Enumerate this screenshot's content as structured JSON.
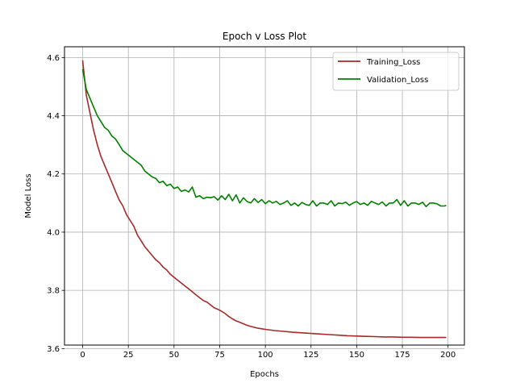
{
  "chart_data": {
    "type": "line",
    "title": "Epoch v Loss Plot",
    "xlabel": "Epochs",
    "ylabel": "Model Loss",
    "xlim": [
      -9.95,
      208.95
    ],
    "ylim": [
      3.612,
      4.637
    ],
    "xticks": [
      0,
      25,
      50,
      75,
      100,
      125,
      150,
      175,
      200
    ],
    "yticks": [
      3.6,
      3.8,
      4.0,
      4.2,
      4.4,
      4.6
    ],
    "grid": true,
    "legend_position": "top-right",
    "series": [
      {
        "name": "Training_Loss",
        "color": "#a52a2a",
        "x": [
          0,
          2,
          4,
          6,
          8,
          10,
          12,
          14,
          16,
          18,
          20,
          22,
          24,
          26,
          28,
          30,
          32,
          34,
          36,
          38,
          40,
          42,
          44,
          46,
          48,
          50,
          52,
          54,
          56,
          58,
          60,
          62,
          64,
          66,
          68,
          70,
          72,
          74,
          76,
          78,
          80,
          82,
          84,
          86,
          88,
          90,
          92,
          94,
          96,
          98,
          100,
          105,
          110,
          115,
          120,
          125,
          130,
          135,
          140,
          145,
          150,
          155,
          160,
          165,
          170,
          175,
          180,
          185,
          190,
          195,
          199
        ],
        "values": [
          4.59,
          4.47,
          4.41,
          4.35,
          4.3,
          4.26,
          4.23,
          4.2,
          4.17,
          4.14,
          4.11,
          4.09,
          4.06,
          4.04,
          4.02,
          3.99,
          3.97,
          3.95,
          3.935,
          3.92,
          3.905,
          3.895,
          3.88,
          3.87,
          3.855,
          3.845,
          3.835,
          3.825,
          3.815,
          3.805,
          3.795,
          3.785,
          3.775,
          3.765,
          3.76,
          3.75,
          3.74,
          3.735,
          3.728,
          3.72,
          3.71,
          3.702,
          3.695,
          3.69,
          3.685,
          3.68,
          3.676,
          3.673,
          3.67,
          3.668,
          3.666,
          3.662,
          3.659,
          3.656,
          3.654,
          3.652,
          3.65,
          3.648,
          3.646,
          3.644,
          3.643,
          3.642,
          3.641,
          3.64,
          3.64,
          3.639,
          3.639,
          3.638,
          3.638,
          3.638,
          3.638
        ]
      },
      {
        "name": "Validation_Loss",
        "color": "#008000",
        "x": [
          0,
          2,
          4,
          6,
          8,
          10,
          12,
          14,
          16,
          18,
          20,
          22,
          24,
          26,
          28,
          30,
          32,
          34,
          36,
          38,
          40,
          42,
          44,
          46,
          48,
          50,
          52,
          54,
          56,
          58,
          60,
          62,
          64,
          66,
          68,
          70,
          72,
          74,
          76,
          78,
          80,
          82,
          84,
          86,
          88,
          90,
          92,
          94,
          96,
          98,
          100,
          102,
          104,
          106,
          108,
          110,
          112,
          114,
          116,
          118,
          120,
          122,
          124,
          126,
          128,
          130,
          132,
          134,
          136,
          138,
          140,
          142,
          144,
          146,
          148,
          150,
          152,
          154,
          156,
          158,
          160,
          162,
          164,
          166,
          168,
          170,
          172,
          174,
          176,
          178,
          180,
          182,
          184,
          186,
          188,
          190,
          192,
          194,
          196,
          198,
          199
        ],
        "values": [
          4.56,
          4.49,
          4.46,
          4.43,
          4.4,
          4.38,
          4.36,
          4.35,
          4.33,
          4.32,
          4.3,
          4.28,
          4.27,
          4.26,
          4.25,
          4.24,
          4.23,
          4.21,
          4.2,
          4.19,
          4.185,
          4.17,
          4.175,
          4.16,
          4.165,
          4.15,
          4.155,
          4.14,
          4.145,
          4.138,
          4.155,
          4.12,
          4.125,
          4.115,
          4.12,
          4.118,
          4.122,
          4.11,
          4.125,
          4.112,
          4.13,
          4.108,
          4.128,
          4.1,
          4.118,
          4.105,
          4.1,
          4.115,
          4.102,
          4.112,
          4.098,
          4.108,
          4.1,
          4.106,
          4.095,
          4.1,
          4.108,
          4.092,
          4.1,
          4.09,
          4.102,
          4.095,
          4.092,
          4.108,
          4.09,
          4.1,
          4.1,
          4.095,
          4.108,
          4.09,
          4.1,
          4.098,
          4.103,
          4.092,
          4.1,
          4.105,
          4.095,
          4.1,
          4.092,
          4.106,
          4.1,
          4.095,
          4.104,
          4.09,
          4.1,
          4.1,
          4.112,
          4.092,
          4.108,
          4.09,
          4.1,
          4.1,
          4.095,
          4.103,
          4.088,
          4.1,
          4.1,
          4.097,
          4.09,
          4.09,
          4.092
        ]
      }
    ]
  }
}
